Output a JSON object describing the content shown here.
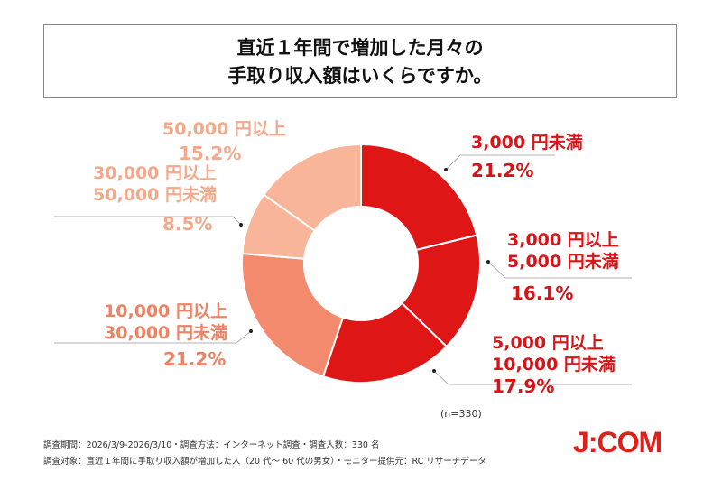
{
  "title": {
    "line1": "直近１年間で増加した月々の",
    "line2": "手取り収入額はいくらですか。"
  },
  "chart_data": {
    "type": "pie",
    "donut": true,
    "categories": [
      "3,000 円未満",
      "3,000 円以上 5,000 円未満",
      "5,000 円以上 10,000 円未満",
      "10,000 円以上 30,000 円未満",
      "30,000 円以上 50,000 円未満",
      "50,000 円以上"
    ],
    "values": [
      21.2,
      16.1,
      17.9,
      21.2,
      8.5,
      15.2
    ],
    "value_labels": [
      "21.2%",
      "16.1%",
      "17.9%",
      "21.2%",
      "8.5%",
      "15.2%"
    ],
    "colors": [
      "#df1616",
      "#df1616",
      "#df1616",
      "#f38a6e",
      "#f8b599",
      "#f8b599"
    ],
    "label_colors": [
      "#d81418",
      "#d81418",
      "#d81418",
      "#ee8265",
      "#f3a98c",
      "#f3a98c"
    ],
    "label_lines": [
      [
        "3,000 円未満"
      ],
      [
        "3,000 円以上",
        "5,000 円未満"
      ],
      [
        "5,000 円以上",
        "10,000 円未満"
      ],
      [
        "10,000 円以上",
        "30,000 円未満"
      ],
      [
        "30,000 円以上",
        "50,000 円未満"
      ],
      [
        "50,000 円以上"
      ]
    ],
    "sample_note": "(n=330)"
  },
  "footer": {
    "line1": "調査期間：2026/3/9-2026/3/10・調査方法：インターネット調査・調査人数：330 名",
    "line2": "調査対象：直近１年間に手取り収入額が増加した人（20 代～ 60 代の男女）・モニター提供元：RC リサーチデータ"
  },
  "logo": "J:COM"
}
